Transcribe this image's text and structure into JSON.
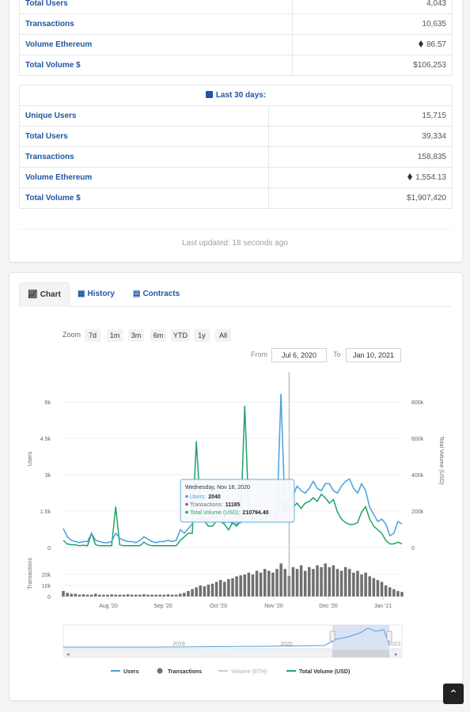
{
  "stats_top": {
    "rows": [
      {
        "label": "Total Users",
        "value": "4,043",
        "eth": false
      },
      {
        "label": "Transactions",
        "value": "10,635",
        "eth": false
      },
      {
        "label": "Volume Ethereum",
        "value": "86.57",
        "eth": true
      },
      {
        "label": "Total Volume $",
        "value": "$106,253",
        "eth": false
      }
    ]
  },
  "stats_30d": {
    "heading": "Last 30 days:",
    "rows": [
      {
        "label": "Unique Users",
        "value": "15,715",
        "eth": false
      },
      {
        "label": "Total Users",
        "value": "39,334",
        "eth": false
      },
      {
        "label": "Transactions",
        "value": "158,835",
        "eth": false
      },
      {
        "label": "Volume Ethereum",
        "value": "1,554.13",
        "eth": true
      },
      {
        "label": "Total Volume $",
        "value": "$1,907,420",
        "eth": false
      }
    ]
  },
  "last_updated": "Last updated: 18 seconds ago",
  "tabs": [
    {
      "label": "Chart",
      "icon": "line-chart-icon",
      "active": true
    },
    {
      "label": "History",
      "icon": "calendar-icon",
      "active": false
    },
    {
      "label": "Contracts",
      "icon": "document-icon",
      "active": false
    }
  ],
  "range_selector": {
    "zoom_label": "Zoom",
    "buttons": [
      "7d",
      "1m",
      "3m",
      "6m",
      "YTD",
      "1y",
      "All"
    ],
    "from_label": "From",
    "from_value": "Jul 6, 2020",
    "to_label": "To",
    "to_value": "Jan 10, 2021"
  },
  "back_to_top_icon": "chevron-up-icon",
  "chart_data": {
    "type": "line",
    "x_range": [
      "2020-07-06",
      "2021-01-10"
    ],
    "x_tick_labels": [
      "Aug '20",
      "Sep '20",
      "Oct '20",
      "Nov '20",
      "Dec '20",
      "Jan '21"
    ],
    "y_left": {
      "label": "Users",
      "ticks": [
        "0",
        "1.5k",
        "3k",
        "4.5k",
        "6k"
      ],
      "range": [
        0,
        7000
      ]
    },
    "y_right": {
      "label": "Total Volume (USD)",
      "ticks": [
        "0",
        "200k",
        "400k",
        "600k",
        "800k"
      ],
      "range": [
        0,
        933333
      ]
    },
    "y_bottom": {
      "label": "Transactions",
      "ticks": [
        "0",
        "10k",
        "20k"
      ],
      "range": [
        0,
        25000
      ]
    },
    "series": [
      {
        "name": "Users",
        "color": "#4a9fdc",
        "axis": "left",
        "values": [
          800,
          450,
          300,
          250,
          200,
          250,
          250,
          600,
          300,
          250,
          200,
          200,
          250,
          600,
          400,
          300,
          250,
          250,
          200,
          300,
          450,
          350,
          250,
          200,
          250,
          250,
          300,
          250,
          300,
          750,
          600,
          800,
          1000,
          1200,
          1250,
          1150,
          1150,
          1300,
          1300,
          1400,
          1050,
          1150,
          1000,
          1000,
          1050,
          1300,
          1500,
          1250,
          1300,
          1400,
          1400,
          1450,
          1150,
          1300,
          6500,
          1500,
          2040,
          2200,
          2600,
          2400,
          2300,
          2500,
          2800,
          2500,
          2400,
          2700,
          2700,
          2400,
          2300,
          2600,
          2800,
          2900,
          2500,
          2300,
          2700,
          2400,
          1700,
          1400,
          1100,
          1200,
          1000,
          500,
          600,
          1100,
          1000
        ]
      },
      {
        "name": "Transactions",
        "color": "#6f6f6f",
        "axis": "bottom",
        "values": [
          3000,
          2000,
          1500,
          1500,
          1000,
          1200,
          1000,
          1000,
          1500,
          1000,
          1000,
          1000,
          1200,
          1000,
          1000,
          1000,
          1200,
          1000,
          1000,
          1000,
          1200,
          1000,
          1000,
          1000,
          1000,
          1000,
          1200,
          1000,
          1000,
          1500,
          2000,
          3000,
          4000,
          5000,
          6000,
          5500,
          6500,
          7000,
          8000,
          9000,
          8000,
          9500,
          10000,
          11000,
          11500,
          12000,
          13000,
          12000,
          14000,
          13000,
          15000,
          14000,
          13000,
          15000,
          18000,
          15000,
          11185,
          16000,
          15000,
          17000,
          14000,
          16000,
          15000,
          17000,
          16000,
          18000,
          16000,
          17000,
          15000,
          14000,
          16000,
          15000,
          13000,
          14000,
          12000,
          13000,
          11000,
          10000,
          9000,
          8000,
          6000,
          5000,
          4000,
          3000,
          2500
        ]
      },
      {
        "name": "Volume (ETH)",
        "color": "#cccccc",
        "axis": "right",
        "hidden": true,
        "values": []
      },
      {
        "name": "Total Volume (USD)",
        "color": "#21a366",
        "axis": "right",
        "values": [
          40000,
          20000,
          15000,
          15000,
          10000,
          12000,
          10000,
          80000,
          15000,
          10000,
          10000,
          10000,
          10000,
          230000,
          15000,
          10000,
          10000,
          10000,
          10000,
          10000,
          30000,
          15000,
          10000,
          10000,
          10000,
          10000,
          10000,
          10000,
          10000,
          40000,
          60000,
          80000,
          80000,
          600000,
          220000,
          150000,
          120000,
          120000,
          150000,
          150000,
          130000,
          100000,
          140000,
          120000,
          150000,
          800000,
          200000,
          150000,
          150000,
          160000,
          150000,
          200000,
          200000,
          180000,
          260000,
          200000,
          210794,
          230000,
          250000,
          220000,
          250000,
          260000,
          280000,
          260000,
          300000,
          280000,
          250000,
          270000,
          200000,
          160000,
          140000,
          130000,
          130000,
          140000,
          200000,
          230000,
          160000,
          120000,
          100000,
          80000,
          40000,
          20000,
          20000,
          30000,
          20000
        ]
      }
    ],
    "tooltip": {
      "date": "Wednesday, Nov 18, 2020",
      "users_label": "Users:",
      "users_value": "2040",
      "tx_label": "Transactions:",
      "tx_value": "11185",
      "vol_label": "Total Volume (USD):",
      "vol_value": "210794.40"
    },
    "navigator": {
      "year_labels": [
        "2019",
        "2020",
        "2021"
      ],
      "selected_from": "2020-07-06",
      "selected_to": "2021-01-10"
    },
    "legend_position": "bottom"
  }
}
